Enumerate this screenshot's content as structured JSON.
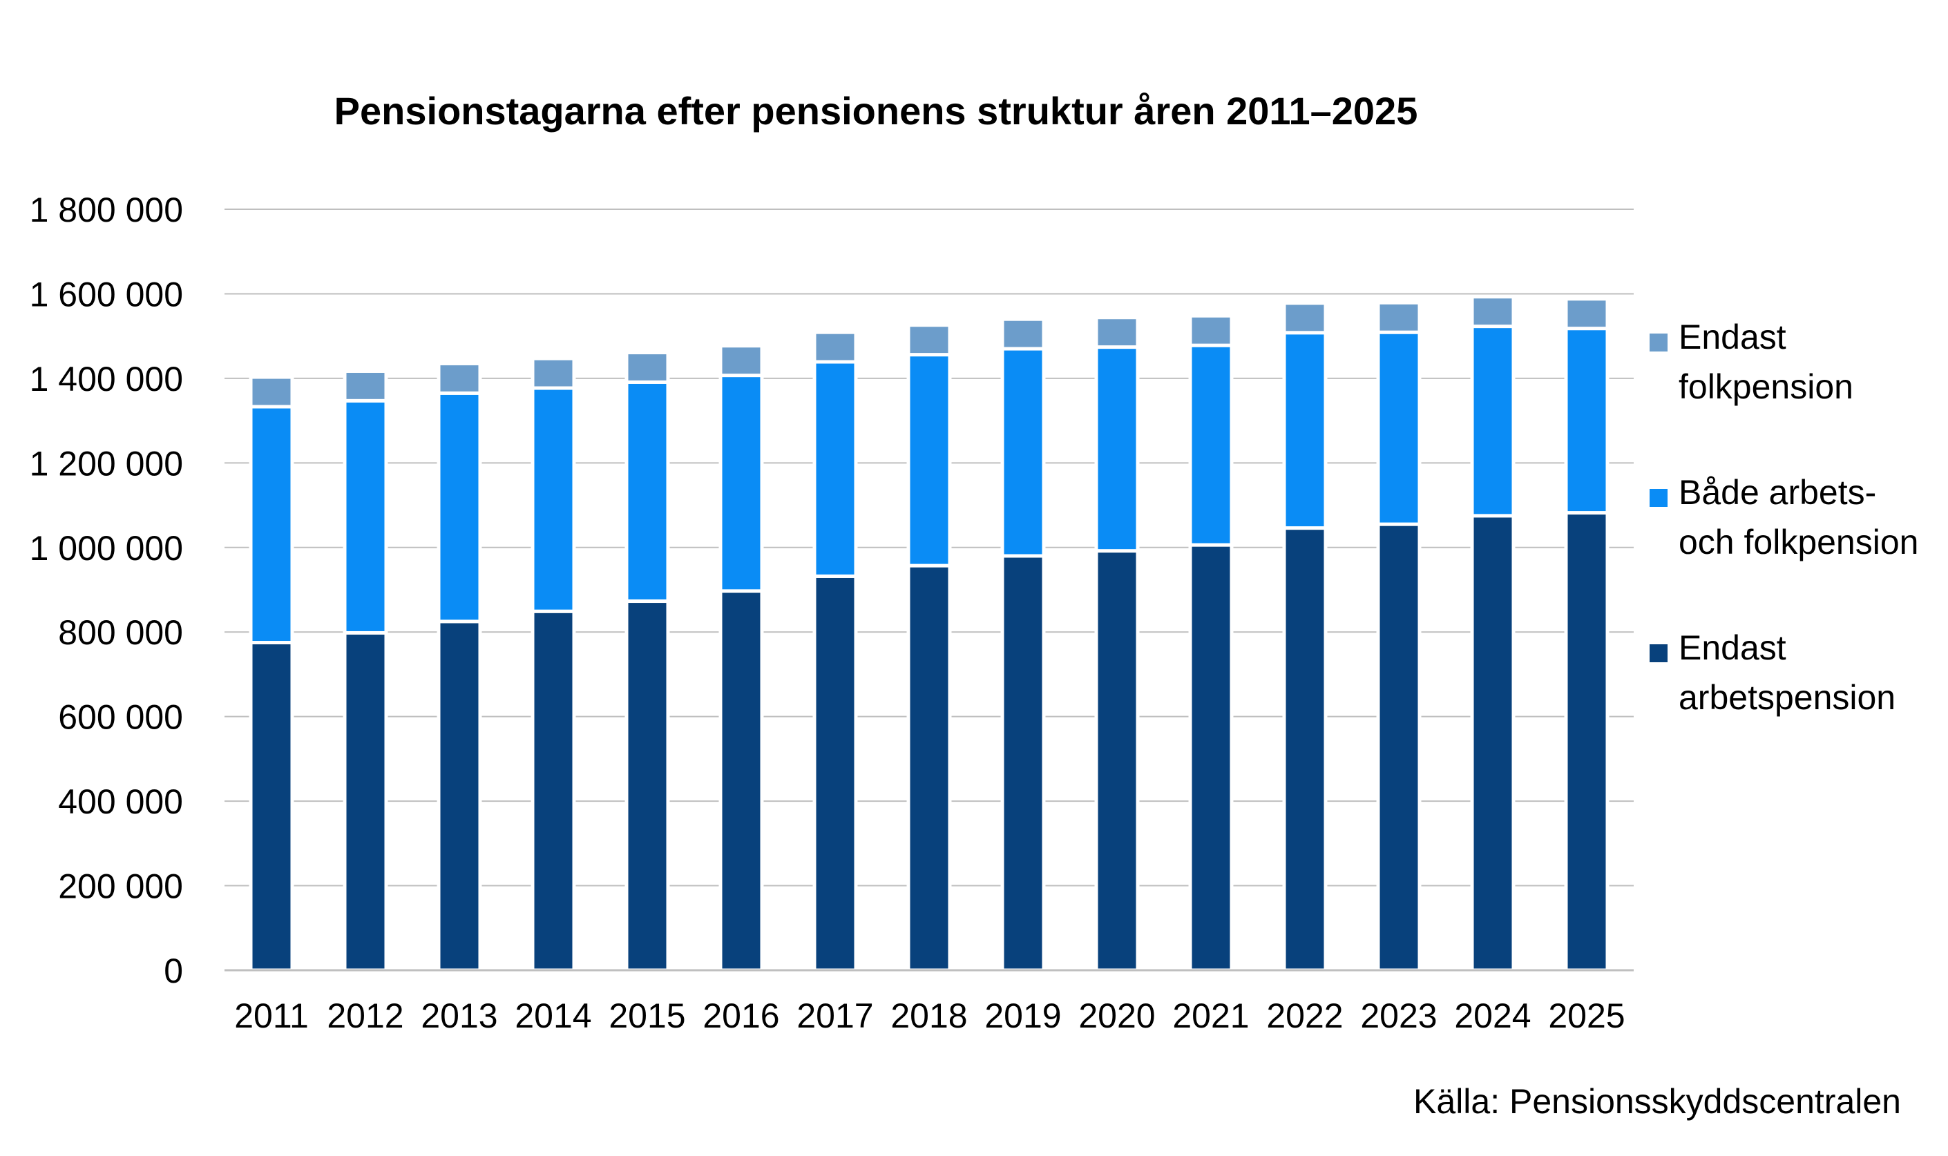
{
  "chart_data": {
    "type": "bar",
    "stacked": true,
    "title": "Pensionstagarna efter pensionens struktur åren 2011–2025",
    "source": "Källa: Pensionsskyddscentralen",
    "categories": [
      "2011",
      "2012",
      "2013",
      "2014",
      "2015",
      "2016",
      "2017",
      "2018",
      "2019",
      "2020",
      "2021",
      "2022",
      "2023",
      "2024",
      "2025"
    ],
    "ylim": [
      0,
      1800000
    ],
    "y_ticks": [
      0,
      200000,
      400000,
      600000,
      800000,
      1000000,
      1200000,
      1400000,
      1600000,
      1800000
    ],
    "y_tick_labels": [
      "0",
      "200 000",
      "400 000",
      "600 000",
      "800 000",
      "1 000 000",
      "1 200 000",
      "1 400 000",
      "1 600 000",
      "1 800 000"
    ],
    "grid": true,
    "legend_position": "right",
    "series": [
      {
        "name": "Endast arbetspension",
        "legend_lines": [
          "Endast",
          "arbetspension"
        ],
        "color": "#08417c",
        "values": [
          775000,
          798000,
          825000,
          849000,
          873000,
          897000,
          932000,
          957000,
          980000,
          992000,
          1006000,
          1046000,
          1055000,
          1075000,
          1082000
        ]
      },
      {
        "name": "Både arbets- och folkpension",
        "legend_lines": [
          "Både arbets-",
          "och folkpension"
        ],
        "color": "#0a8cf5",
        "values": [
          558000,
          549000,
          540000,
          528000,
          518000,
          510000,
          507000,
          499000,
          490000,
          482000,
          472000,
          462000,
          454000,
          448000,
          436000
        ]
      },
      {
        "name": "Endast folkpension",
        "legend_lines": [
          "Endast",
          "folkpension"
        ],
        "color": "#6c9dcb",
        "values": [
          70000,
          70000,
          70000,
          70000,
          70000,
          70000,
          70000,
          70000,
          70000,
          70000,
          70000,
          70000,
          70000,
          70000,
          70000
        ]
      }
    ]
  }
}
